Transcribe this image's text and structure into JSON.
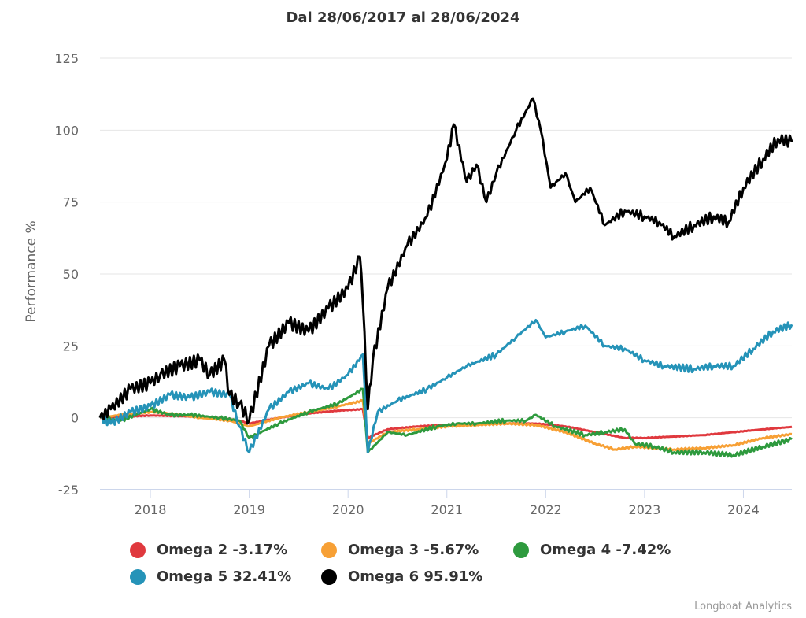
{
  "chart_data": {
    "type": "line",
    "title": "Dal 28/06/2017 al 28/06/2024",
    "xlabel": "",
    "ylabel": "Performance %",
    "xlim": [
      2017.49,
      2024.49
    ],
    "ylim": [
      -25,
      125
    ],
    "y_ticks": [
      "-25",
      "0",
      "25",
      "50",
      "75",
      "100",
      "125"
    ],
    "y_tick_values": [
      -25,
      0,
      25,
      50,
      75,
      100,
      125
    ],
    "x_ticks": [
      "2018",
      "2019",
      "2020",
      "2021",
      "2022",
      "2023",
      "2024"
    ],
    "x_tick_values": [
      2018,
      2019,
      2020,
      2021,
      2022,
      2023,
      2024
    ],
    "grid": true,
    "legend_position": "bottom",
    "series": [
      {
        "name": "Omega 2",
        "label": "Omega 2 -3.17%",
        "color": "#e0393e",
        "x": [
          2017.49,
          2017.7,
          2018.0,
          2018.3,
          2018.6,
          2018.9,
          2019.0,
          2019.3,
          2019.6,
          2019.9,
          2020.15,
          2020.2,
          2020.4,
          2020.7,
          2021.0,
          2021.3,
          2021.6,
          2021.9,
          2022.2,
          2022.5,
          2022.8,
          2023.0,
          2023.3,
          2023.6,
          2023.9,
          2024.2,
          2024.49
        ],
        "y": [
          0,
          0.3,
          0.8,
          0.6,
          0.2,
          -1,
          -2,
          0,
          1.5,
          2.5,
          3,
          -7,
          -4,
          -3,
          -2.5,
          -2,
          -2,
          -2,
          -3,
          -5,
          -7,
          -7,
          -6.5,
          -6,
          -5,
          -4,
          -3.17
        ]
      },
      {
        "name": "Omega 3",
        "label": "Omega 3 -5.67%",
        "color": "#f7a035",
        "x": [
          2017.49,
          2017.7,
          2018.0,
          2018.2,
          2018.5,
          2018.8,
          2019.0,
          2019.3,
          2019.6,
          2019.9,
          2020.15,
          2020.2,
          2020.4,
          2020.7,
          2021.0,
          2021.3,
          2021.6,
          2021.9,
          2022.2,
          2022.5,
          2022.7,
          2022.9,
          2023.1,
          2023.3,
          2023.6,
          2023.9,
          2024.2,
          2024.49
        ],
        "y": [
          0,
          1,
          2,
          1.5,
          0,
          -1,
          -3,
          0,
          2,
          4,
          6,
          -9,
          -5,
          -4,
          -3,
          -2.5,
          -2,
          -2.5,
          -5,
          -9,
          -11,
          -10,
          -10.5,
          -11,
          -10.5,
          -9.5,
          -7,
          -5.67
        ]
      },
      {
        "name": "Omega 4",
        "label": "Omega 4 -7.42%",
        "color": "#2e9a3e",
        "x": [
          2017.49,
          2017.7,
          2018.0,
          2018.2,
          2018.4,
          2018.7,
          2018.9,
          2019.0,
          2019.3,
          2019.6,
          2019.9,
          2020.15,
          2020.2,
          2020.4,
          2020.6,
          2020.9,
          2021.1,
          2021.3,
          2021.6,
          2021.8,
          2021.9,
          2022.1,
          2022.4,
          2022.6,
          2022.8,
          2022.9,
          2023.1,
          2023.3,
          2023.6,
          2023.9,
          2024.2,
          2024.49
        ],
        "y": [
          0,
          -1,
          3,
          1,
          1,
          0,
          -1,
          -7,
          -2,
          2,
          5,
          10,
          -12,
          -5,
          -6,
          -3,
          -2,
          -2,
          -1,
          -1,
          1,
          -3,
          -6,
          -5,
          -4,
          -9,
          -10,
          -12,
          -12,
          -13,
          -10,
          -7.42
        ]
      },
      {
        "name": "Omega 5",
        "label": "Omega 5 32.41%",
        "color": "#2593b8",
        "x": [
          2017.49,
          2017.6,
          2017.8,
          2018.0,
          2018.2,
          2018.4,
          2018.6,
          2018.8,
          2018.9,
          2019.0,
          2019.2,
          2019.4,
          2019.6,
          2019.8,
          2020.0,
          2020.15,
          2020.2,
          2020.3,
          2020.5,
          2020.8,
          2021.0,
          2021.2,
          2021.5,
          2021.7,
          2021.9,
          2022.0,
          2022.2,
          2022.4,
          2022.6,
          2022.8,
          2023.0,
          2023.2,
          2023.5,
          2023.7,
          2023.9,
          2024.1,
          2024.3,
          2024.49
        ],
        "y": [
          0,
          -2,
          2,
          4,
          8,
          7,
          9,
          8,
          -3,
          -12,
          3,
          9,
          12,
          10,
          15,
          22,
          -12,
          2,
          6,
          10,
          14,
          18,
          22,
          28,
          34,
          28,
          30,
          32,
          25,
          24,
          20,
          18,
          17,
          18,
          18,
          24,
          30,
          32.41
        ]
      },
      {
        "name": "Omega 6",
        "label": "Omega 6 95.91%",
        "color": "#000000",
        "x": [
          2017.49,
          2017.6,
          2017.8,
          2018.0,
          2018.1,
          2018.3,
          2018.5,
          2018.6,
          2018.75,
          2018.8,
          2018.9,
          2019.0,
          2019.2,
          2019.4,
          2019.6,
          2019.8,
          2020.0,
          2020.12,
          2020.15,
          2020.2,
          2020.25,
          2020.4,
          2020.6,
          2020.8,
          2021.0,
          2021.07,
          2021.2,
          2021.3,
          2021.4,
          2021.5,
          2021.7,
          2021.87,
          2021.95,
          2022.05,
          2022.2,
          2022.3,
          2022.45,
          2022.6,
          2022.8,
          2023.0,
          2023.15,
          2023.3,
          2023.5,
          2023.7,
          2023.85,
          2024.0,
          2024.2,
          2024.35,
          2024.49
        ],
        "y": [
          0,
          3,
          10,
          12,
          15,
          18,
          20,
          15,
          20,
          8,
          5,
          -1,
          25,
          33,
          30,
          38,
          45,
          56,
          40,
          3,
          20,
          45,
          60,
          70,
          90,
          102,
          82,
          88,
          75,
          85,
          100,
          111,
          100,
          80,
          85,
          75,
          80,
          67,
          72,
          70,
          68,
          63,
          67,
          70,
          68,
          80,
          90,
          97,
          95.91
        ]
      }
    ]
  },
  "legend": [
    {
      "label": "Omega 2 -3.17%",
      "color": "#e0393e"
    },
    {
      "label": "Omega 3 -5.67%",
      "color": "#f7a035"
    },
    {
      "label": "Omega 4 -7.42%",
      "color": "#2e9a3e"
    },
    {
      "label": "Omega 5 32.41%",
      "color": "#2593b8"
    },
    {
      "label": "Omega 6 95.91%",
      "color": "#000000"
    }
  ],
  "credit": "Longboat Analytics"
}
